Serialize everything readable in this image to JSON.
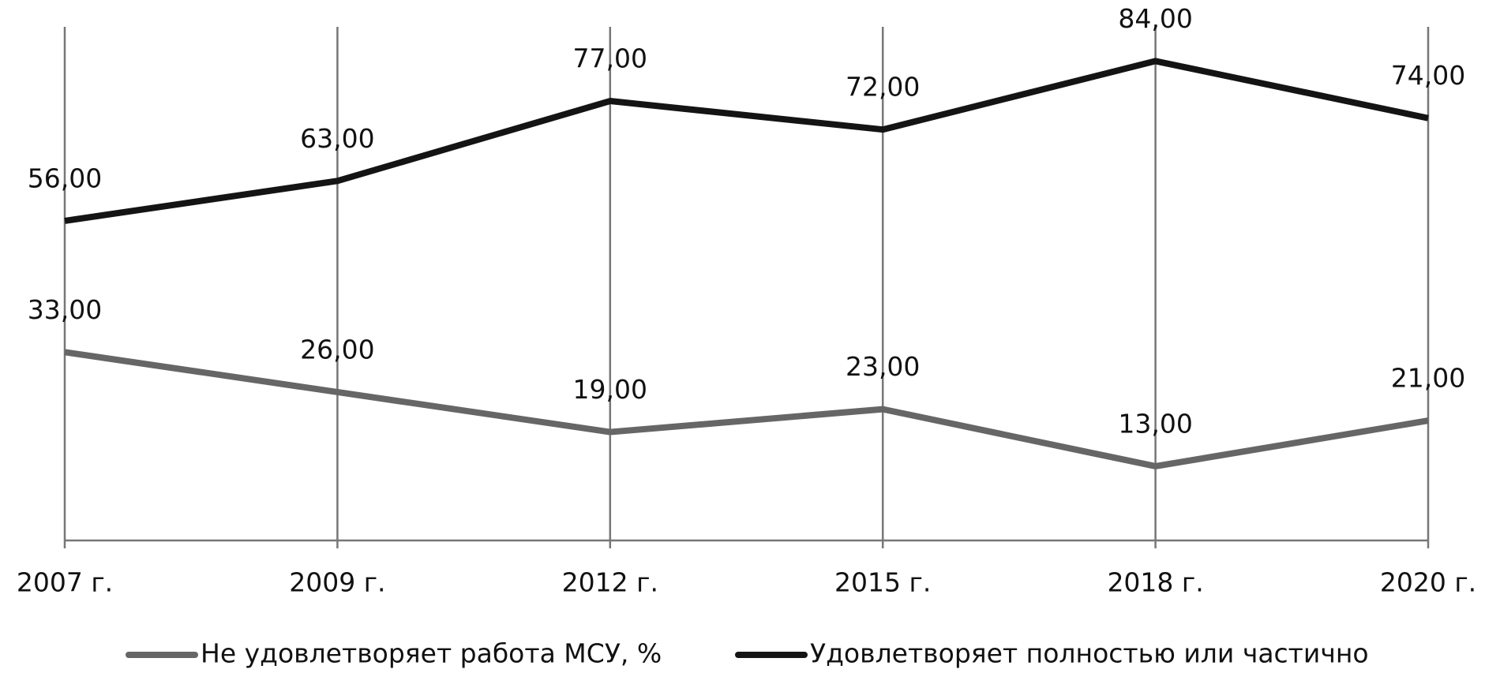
{
  "chart_data": {
    "type": "line",
    "categories": [
      "2007 г.",
      "2009 г.",
      "2012 г.",
      "2015 г.",
      "2018 г.",
      "2020 г."
    ],
    "series": [
      {
        "name": "Не удовлетворяет работа МСУ, %",
        "color": "#666666",
        "values": [
          33,
          26,
          19,
          23,
          13,
          21
        ],
        "value_labels": [
          "33,00",
          "26,00",
          "19,00",
          "23,00",
          "13,00",
          "21,00"
        ]
      },
      {
        "name": "Удовлетворяет полностью или частично",
        "color": "#141414",
        "values": [
          56,
          63,
          77,
          72,
          84,
          74
        ],
        "value_labels": [
          "56,00",
          "63,00",
          "77,00",
          "72,00",
          "84,00",
          "74,00"
        ]
      }
    ],
    "ylim": [
      0,
      90
    ],
    "grid": true,
    "legend": "bottom"
  }
}
